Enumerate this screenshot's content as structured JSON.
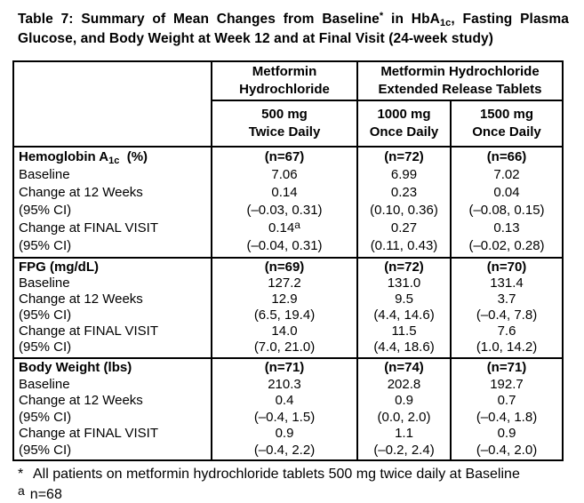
{
  "colors": {
    "background": "#ffffff",
    "text": "#000000",
    "border": "#000000"
  },
  "title": {
    "line1_pre": "Table 7:  Summary of Mean Changes from Baseline",
    "line1_sup": "*",
    "line1_mid": " in HbA",
    "line1_sub": "1c",
    "line1_post": ", Fasting Plasma",
    "line2": "Glucose, and Body Weight at Week 12 and at Final Visit (24-week study)"
  },
  "header": {
    "group1_line1": "Metformin",
    "group1_line2": "Hydrochloride",
    "group2_line1": "Metformin Hydrochloride",
    "group2_line2": "Extended Release Tablets",
    "dose1_line1": "500 mg",
    "dose1_line2": "Twice Daily",
    "dose2_line1": "1000 mg",
    "dose2_line2": "Once Daily",
    "dose3_line1": "1500 mg",
    "dose3_line2": "Once Daily"
  },
  "row_labels": [
    "Baseline",
    "Change at 12 Weeks",
    "(95% CI)",
    "Change at FINAL VISIT",
    "(95% CI)"
  ],
  "sections": [
    {
      "label_pre": "Hemoglobin A",
      "label_sub": "1c",
      "label_post": "  (%)",
      "col1": {
        "n": "(n=67)",
        "v1": "7.06",
        "v2": "0.14",
        "v3": "(–0.03, 0.31)",
        "v4": "0.14",
        "v4sup": "a",
        "v5": "(–0.04, 0.31)"
      },
      "col2": {
        "n": "(n=72)",
        "v1": "6.99",
        "v2": "0.23",
        "v3": "(0.10, 0.36)",
        "v4": "0.27",
        "v5": "(0.11, 0.43)"
      },
      "col3": {
        "n": "(n=66)",
        "v1": "7.02",
        "v2": "0.04",
        "v3": "(–0.08, 0.15)",
        "v4": "0.13",
        "v5": "(–0.02, 0.28)"
      }
    },
    {
      "label_pre": "FPG (mg/dL)",
      "col1": {
        "n": "(n=69)",
        "v1": "127.2",
        "v2": "12.9",
        "v3": "(6.5, 19.4)",
        "v4": "14.0",
        "v5": "(7.0, 21.0)"
      },
      "col2": {
        "n": "(n=72)",
        "v1": "131.0",
        "v2": "9.5",
        "v3": "(4.4, 14.6)",
        "v4": "11.5",
        "v5": "(4.4, 18.6)"
      },
      "col3": {
        "n": "(n=70)",
        "v1": "131.4",
        "v2": "3.7",
        "v3": "(–0.4, 7.8)",
        "v4": "7.6",
        "v5": "(1.0, 14.2)"
      }
    },
    {
      "label_pre": "Body Weight (lbs)",
      "col1": {
        "n": "(n=71)",
        "v1": "210.3",
        "v2": "0.4",
        "v3": "(–0.4, 1.5)",
        "v4": "0.9",
        "v5": "(–0.4, 2.2)"
      },
      "col2": {
        "n": "(n=74)",
        "v1": "202.8",
        "v2": "0.9",
        "v3": "(0.0, 2.0)",
        "v4": "1.1",
        "v5": "(–0.2, 2.4)"
      },
      "col3": {
        "n": "(n=71)",
        "v1": "192.7",
        "v2": "0.7",
        "v3": "(–0.4, 1.8)",
        "v4": "0.9",
        "v5": "(–0.4, 2.0)"
      }
    }
  ],
  "footnotes": {
    "star_marker": "*",
    "star_text": "All patients on metformin hydrochloride tablets 500 mg twice daily at Baseline",
    "a_marker": "a",
    "a_text": "n=68"
  }
}
